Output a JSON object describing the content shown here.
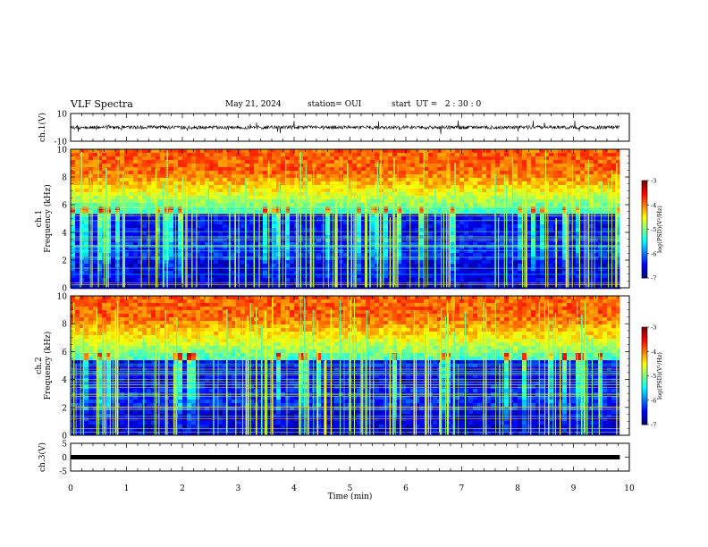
{
  "header": {
    "title": "VLF Spectra",
    "date": "May 21, 2024",
    "station": "station= OUI",
    "start": "start  UT =   2 : 30 : 0"
  },
  "chart_data": [
    {
      "type": "line",
      "panel": "waveform-ch1",
      "ylabel": "ch.1(V)",
      "ylim": [
        -10,
        10
      ],
      "yticks": [
        "10",
        "-10"
      ],
      "xlim": [
        0,
        10
      ],
      "series": [
        {
          "values_mean": 0
        }
      ]
    },
    {
      "type": "heatmap",
      "panel": "spectrogram-ch1",
      "ylabel": "ch.1\nFrequency (kHz)",
      "ylabel_lines": [
        "ch.1",
        "Frequency (kHz)"
      ],
      "ylim": [
        0,
        10
      ],
      "yticks": [
        "0",
        "2",
        "4",
        "6",
        "8",
        "10"
      ],
      "xlim": [
        0,
        10
      ],
      "data_end_min": 9.83,
      "colorbar": {
        "label": "log(PSD)(V²/Hz)",
        "range": [
          -7,
          -3
        ],
        "ticks": [
          "-3",
          "-4",
          "-5",
          "-6",
          "-7"
        ]
      }
    },
    {
      "type": "heatmap",
      "panel": "spectrogram-ch2",
      "ylabel_lines": [
        "ch.2",
        "Frequency (kHz)"
      ],
      "ylim": [
        0,
        10
      ],
      "yticks": [
        "0",
        "2",
        "4",
        "6",
        "8",
        "10"
      ],
      "xlim": [
        0,
        10
      ],
      "data_end_min": 9.83,
      "colorbar": {
        "label": "log(PSD)(V²/Hz)",
        "range": [
          -7,
          -3
        ],
        "ticks": [
          "-3",
          "-4",
          "-5",
          "-6",
          "-7"
        ]
      }
    },
    {
      "type": "line",
      "panel": "waveform-ch3",
      "ylabel": "ch.3(V)",
      "ylim": [
        -5,
        5
      ],
      "yticks": [
        "5",
        "0",
        "-5"
      ],
      "xlim": [
        0,
        10
      ],
      "series": [
        {
          "values_mean": 0
        }
      ]
    }
  ],
  "xaxis": {
    "label": "Time  (min)",
    "ticks": [
      "0",
      "1",
      "2",
      "3",
      "4",
      "5",
      "6",
      "7",
      "8",
      "9",
      "10"
    ]
  },
  "colors": {
    "frame": "#000000",
    "background": "#ffffff"
  }
}
